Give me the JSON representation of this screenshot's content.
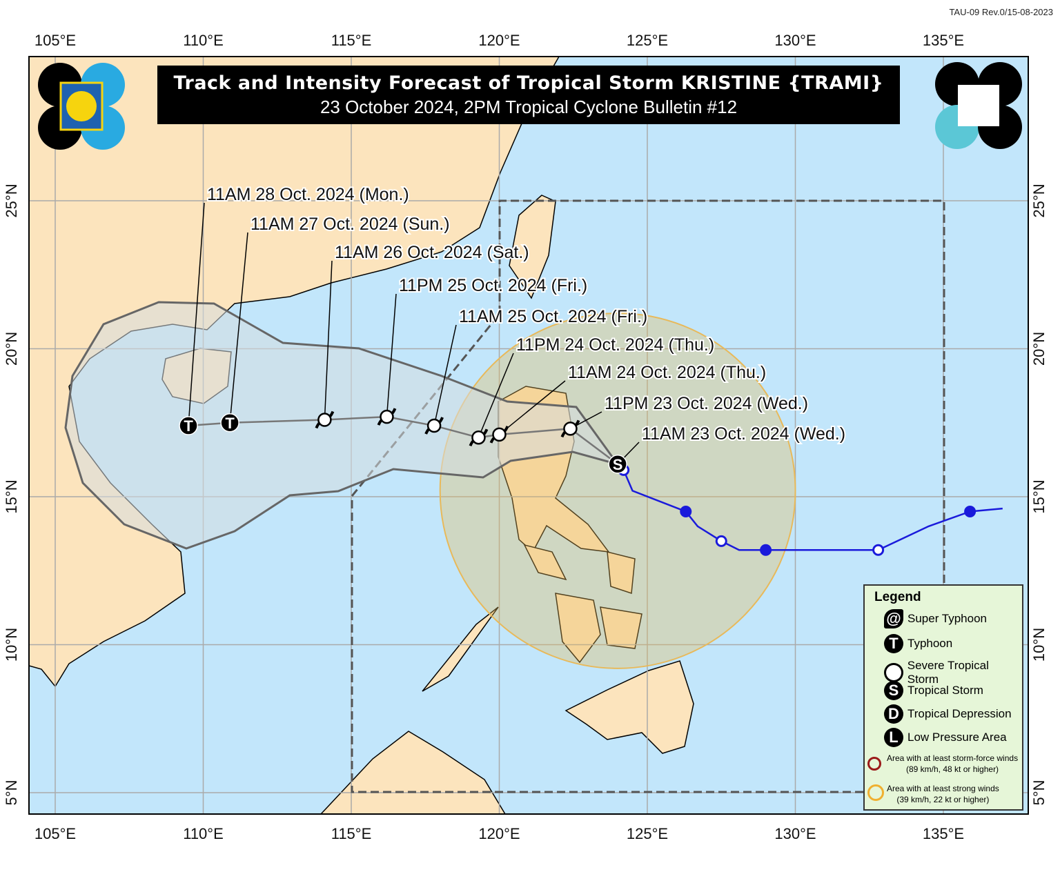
{
  "doc_code": "TAU-09 Rev.0/15-08-2023",
  "title": "Track and Intensity Forecast of Tropical Storm KRISTINE {TRAMI}",
  "subtitle": "23 October 2024, 2PM Tropical Cyclone Bulletin #12",
  "lon_ticks": [
    "105°E",
    "110°E",
    "115°E",
    "120°E",
    "125°E",
    "130°E",
    "135°E"
  ],
  "lat_ticks": [
    "25°N",
    "20°N",
    "15°N",
    "10°N",
    "5°N"
  ],
  "colors": {
    "ocean": "#c2e6fb",
    "land": "#fce4bd",
    "past_track": "#1a1adb",
    "strong_wind_area": "#e8b95a",
    "forecast_cone": "#d6dde0",
    "legend_bg": "#e6f6d8"
  },
  "forecast": [
    {
      "label": "11AM 23 Oct. 2024 (Wed.)",
      "lon": 124.0,
      "lat": 16.1,
      "category": "S"
    },
    {
      "label": "11PM 23 Oct. 2024 (Wed.)",
      "lon": 122.4,
      "lat": 17.3,
      "category": "STS"
    },
    {
      "label": "11AM 24 Oct. 2024 (Thu.)",
      "lon": 120.0,
      "lat": 17.1,
      "category": "STS"
    },
    {
      "label": "11PM 24 Oct. 2024 (Thu.)",
      "lon": 119.3,
      "lat": 17.0,
      "category": "STS"
    },
    {
      "label": "11AM 25 Oct. 2024 (Fri.)",
      "lon": 117.8,
      "lat": 17.4,
      "category": "STS"
    },
    {
      "label": "11PM 25 Oct. 2024 (Fri.)",
      "lon": 116.2,
      "lat": 17.7,
      "category": "STS"
    },
    {
      "label": "11AM 26 Oct. 2024 (Sat.)",
      "lon": 114.1,
      "lat": 17.6,
      "category": "STS"
    },
    {
      "label": "11AM 27 Oct. 2024 (Sun.)",
      "lon": 110.9,
      "lat": 17.5,
      "category": "T"
    },
    {
      "label": "11AM 28 Oct. 2024 (Mon.)",
      "lon": 109.5,
      "lat": 17.4,
      "category": "T"
    }
  ],
  "past_track": [
    {
      "lon": 137.0,
      "lat": 14.6,
      "marker": "none"
    },
    {
      "lon": 135.9,
      "lat": 14.5,
      "marker": "filled"
    },
    {
      "lon": 134.5,
      "lat": 14.0,
      "marker": "none"
    },
    {
      "lon": 132.8,
      "lat": 13.2,
      "marker": "open"
    },
    {
      "lon": 129.0,
      "lat": 13.2,
      "marker": "filled"
    },
    {
      "lon": 128.1,
      "lat": 13.2,
      "marker": "none"
    },
    {
      "lon": 127.5,
      "lat": 13.5,
      "marker": "open"
    },
    {
      "lon": 126.7,
      "lat": 14.0,
      "marker": "none"
    },
    {
      "lon": 126.3,
      "lat": 14.5,
      "marker": "filled"
    },
    {
      "lon": 124.5,
      "lat": 15.2,
      "marker": "none"
    },
    {
      "lon": 124.2,
      "lat": 15.9,
      "marker": "open"
    }
  ],
  "strong_wind_area": {
    "center_lon": 124.0,
    "center_lat": 15.2,
    "radius_deg": 6.0
  },
  "legend": {
    "title": "Legend",
    "items": [
      {
        "symbol": "super-typhoon",
        "label": "Super Typhoon"
      },
      {
        "symbol": "T",
        "label": "Typhoon"
      },
      {
        "symbol": "severe-tropical-storm",
        "label": "Severe Tropical Storm"
      },
      {
        "symbol": "S",
        "label": "Tropical Storm"
      },
      {
        "symbol": "D",
        "label": "Tropical Depression"
      },
      {
        "symbol": "L",
        "label": "Low Pressure Area"
      }
    ],
    "areas": [
      {
        "color": "#9b1a1a",
        "line1": "Area with at least storm-force winds",
        "line2": "(89 km/h, 48 kt or higher)"
      },
      {
        "color": "#f0b030",
        "line1": "Area with at least strong winds",
        "line2": "(39 km/h, 22 kt or higher)"
      }
    ]
  }
}
